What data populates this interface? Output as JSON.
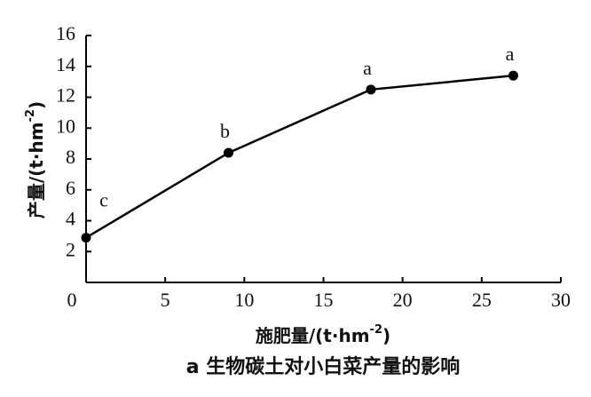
{
  "chart_data": {
    "type": "line",
    "caption": "a 生物碳土对小白菜产量的影响",
    "xlabel": {
      "text": "施肥量/(t·hm",
      "sup": "-2",
      "end": ")"
    },
    "ylabel": {
      "text": "产量/(t·hm",
      "sup": "-2",
      "end": ")"
    },
    "x": [
      0,
      9,
      18,
      27
    ],
    "series": [
      {
        "color": "#000000",
        "values": [
          2.9,
          8.4,
          12.5,
          13.4
        ]
      }
    ],
    "point_labels": [
      "c",
      "b",
      "a",
      "a"
    ],
    "xlim": [
      0,
      30
    ],
    "xticks": [
      0,
      5,
      10,
      15,
      20,
      25,
      30
    ],
    "ylim": [
      0,
      16
    ],
    "yticks": [
      2,
      4,
      6,
      8,
      10,
      12,
      14,
      16
    ]
  }
}
